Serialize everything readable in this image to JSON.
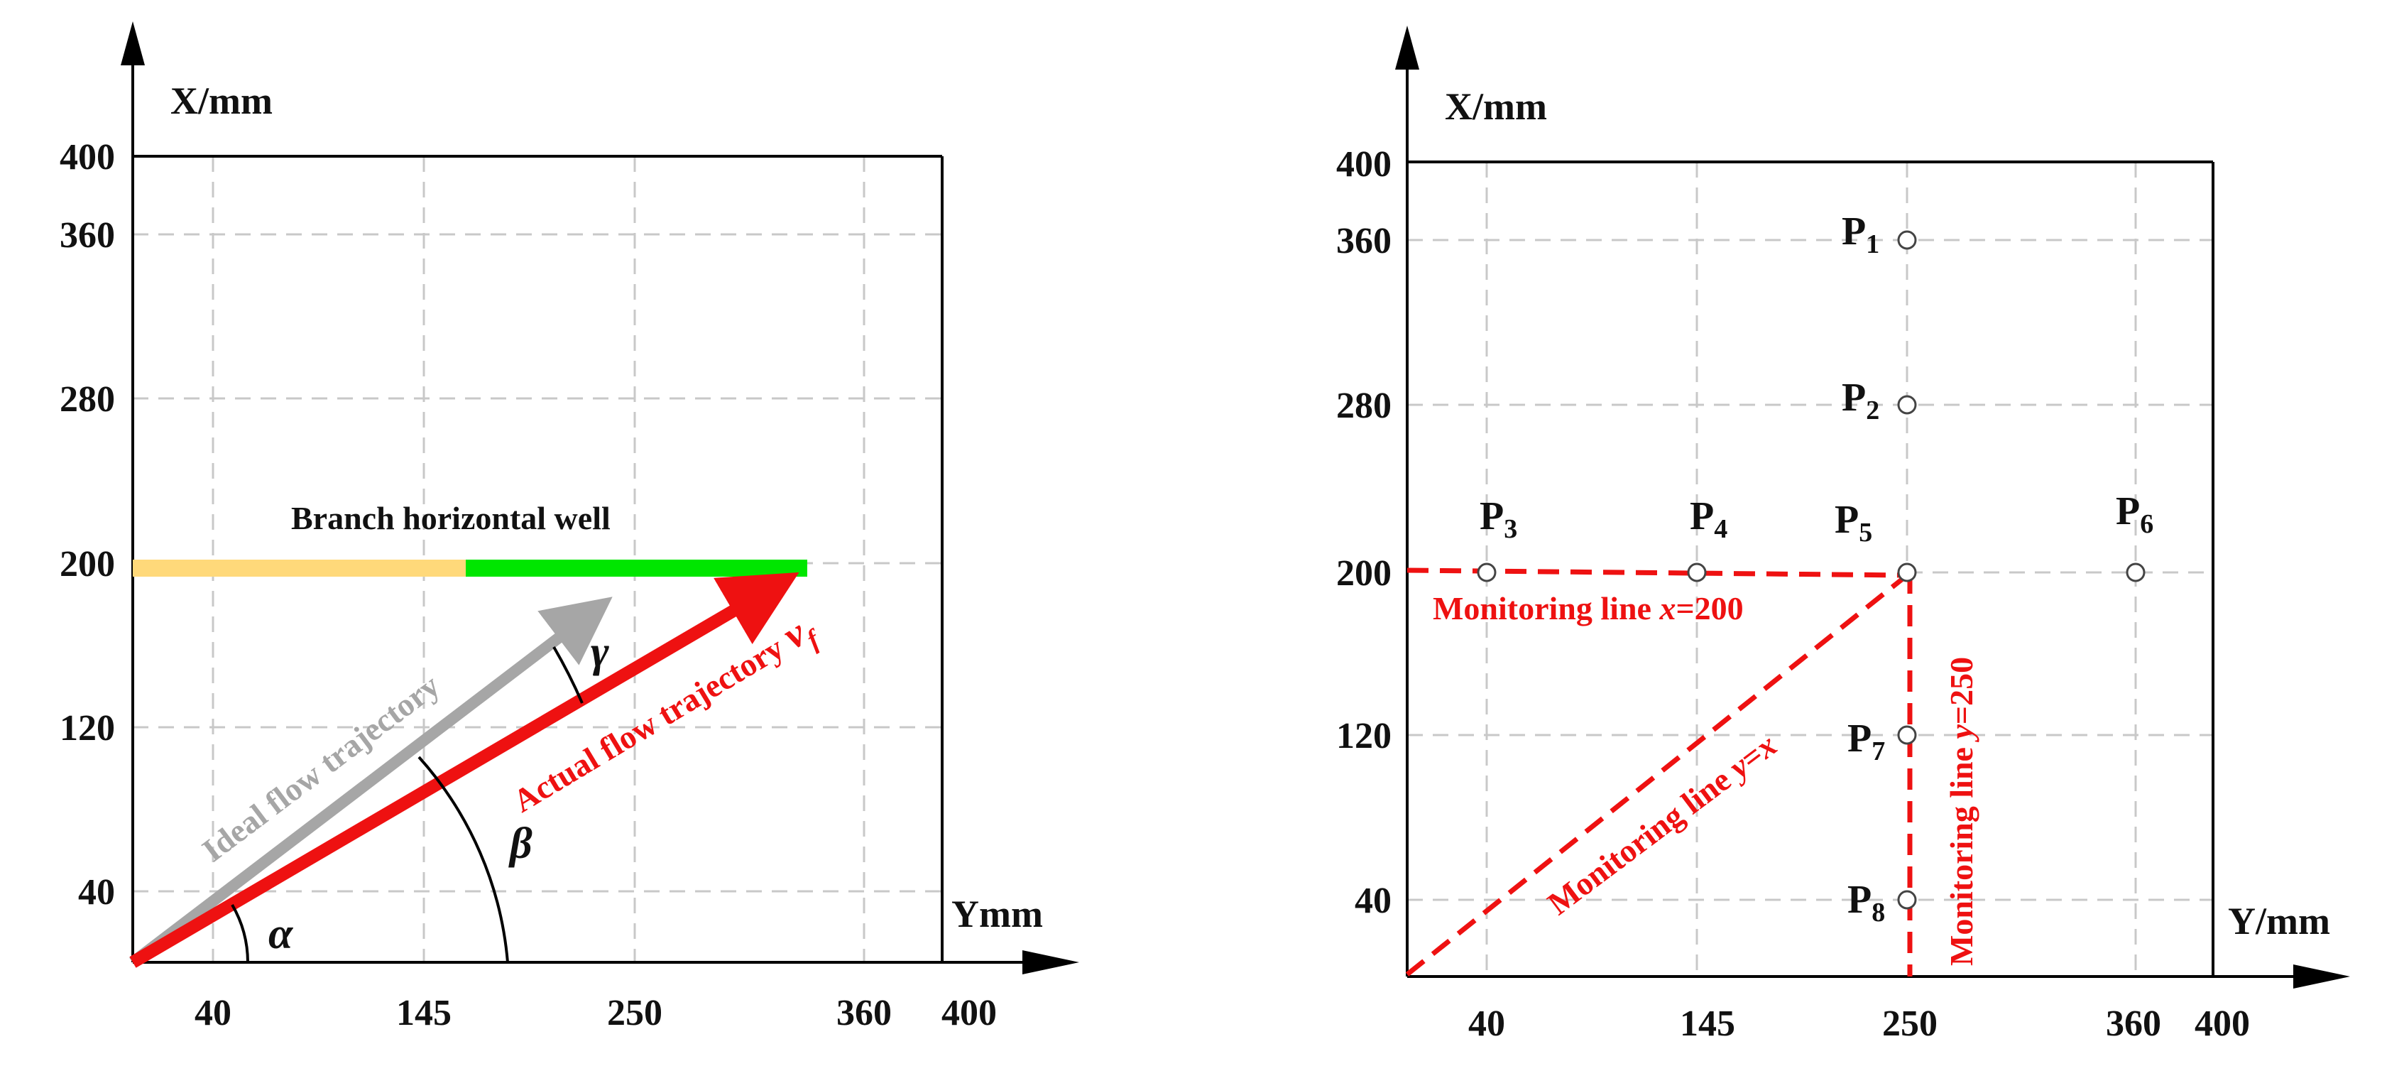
{
  "left_panel": {
    "x_axis_title": "X/mm",
    "y_axis_title": "Ymm",
    "x_ticks": [
      "40",
      "120",
      "200",
      "280",
      "360",
      "400"
    ],
    "y_ticks": [
      "40",
      "145",
      "250",
      "360",
      "400"
    ],
    "well_label": "Branch horizontal well",
    "ideal_label": "Ideal  flow trajectory",
    "actual_label": "Actual flow trajectory",
    "actual_symbol": "v",
    "actual_subscript": "f",
    "alpha": "α",
    "beta": "β",
    "gamma": "γ"
  },
  "right_panel": {
    "x_axis_title": "X/mm",
    "y_axis_title": "Y/mm",
    "x_ticks": [
      "40",
      "120",
      "200",
      "280",
      "360",
      "400"
    ],
    "y_ticks": [
      "40",
      "145",
      "250",
      "360",
      "400"
    ],
    "line_x200": {
      "prefix": "Monitoring line ",
      "var": "x",
      "value": "=200"
    },
    "line_y250": {
      "prefix": "Monitoring line ",
      "var": "y",
      "value": "=250"
    },
    "line_yx": {
      "prefix": "Monitoring line ",
      "var": "y",
      "eq": "=",
      "var2": "x"
    },
    "points": [
      {
        "main": "P",
        "sub": "1"
      },
      {
        "main": "P",
        "sub": "2"
      },
      {
        "main": "P",
        "sub": "3"
      },
      {
        "main": "P",
        "sub": "4"
      },
      {
        "main": "P",
        "sub": "5"
      },
      {
        "main": "P",
        "sub": "6"
      },
      {
        "main": "P",
        "sub": "7"
      },
      {
        "main": "P",
        "sub": "8"
      }
    ]
  },
  "colors": {
    "red": "#ee1111",
    "gray": "#a6a6a6",
    "green": "#00e600",
    "yellow": "#ffd97a",
    "grid": "#c8c8c8"
  }
}
